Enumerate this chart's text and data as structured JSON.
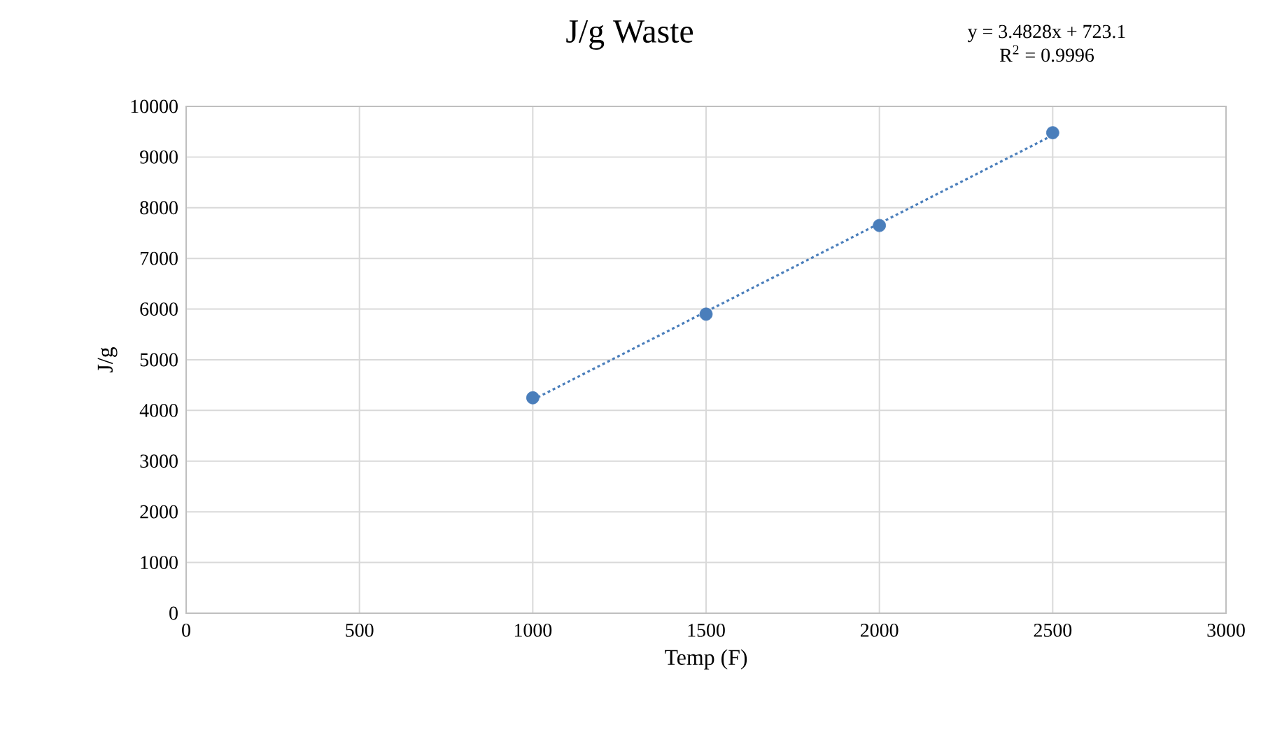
{
  "chart_data": {
    "type": "scatter",
    "title": "J/g Waste",
    "xlabel": "Temp (F)",
    "ylabel": "J/g",
    "annotations": [
      "y = 3.4828x + 723.1",
      "R$^{2}$ = 0.9996"
    ],
    "xlim": [
      0,
      3000
    ],
    "xticks": [
      0,
      500,
      1000,
      1500,
      2000,
      2500,
      3000
    ],
    "ylim": [
      0,
      10000
    ],
    "yticks": [
      0,
      1000,
      2000,
      3000,
      4000,
      5000,
      6000,
      7000,
      8000,
      9000,
      10000
    ],
    "grid": true,
    "series": [
      {
        "color": "#4a7ebb",
        "x": [
          1000,
          1500,
          2000,
          2500
        ],
        "values": [
          4250,
          5900,
          7650,
          9480
        ],
        "marker": "circle"
      },
      {
        "type": "line",
        "color": "#4a7ebb",
        "x": [
          1000,
          2500
        ],
        "values": [
          4210,
          9430
        ],
        "line_style": "dotted",
        "marker": "none"
      }
    ]
  }
}
